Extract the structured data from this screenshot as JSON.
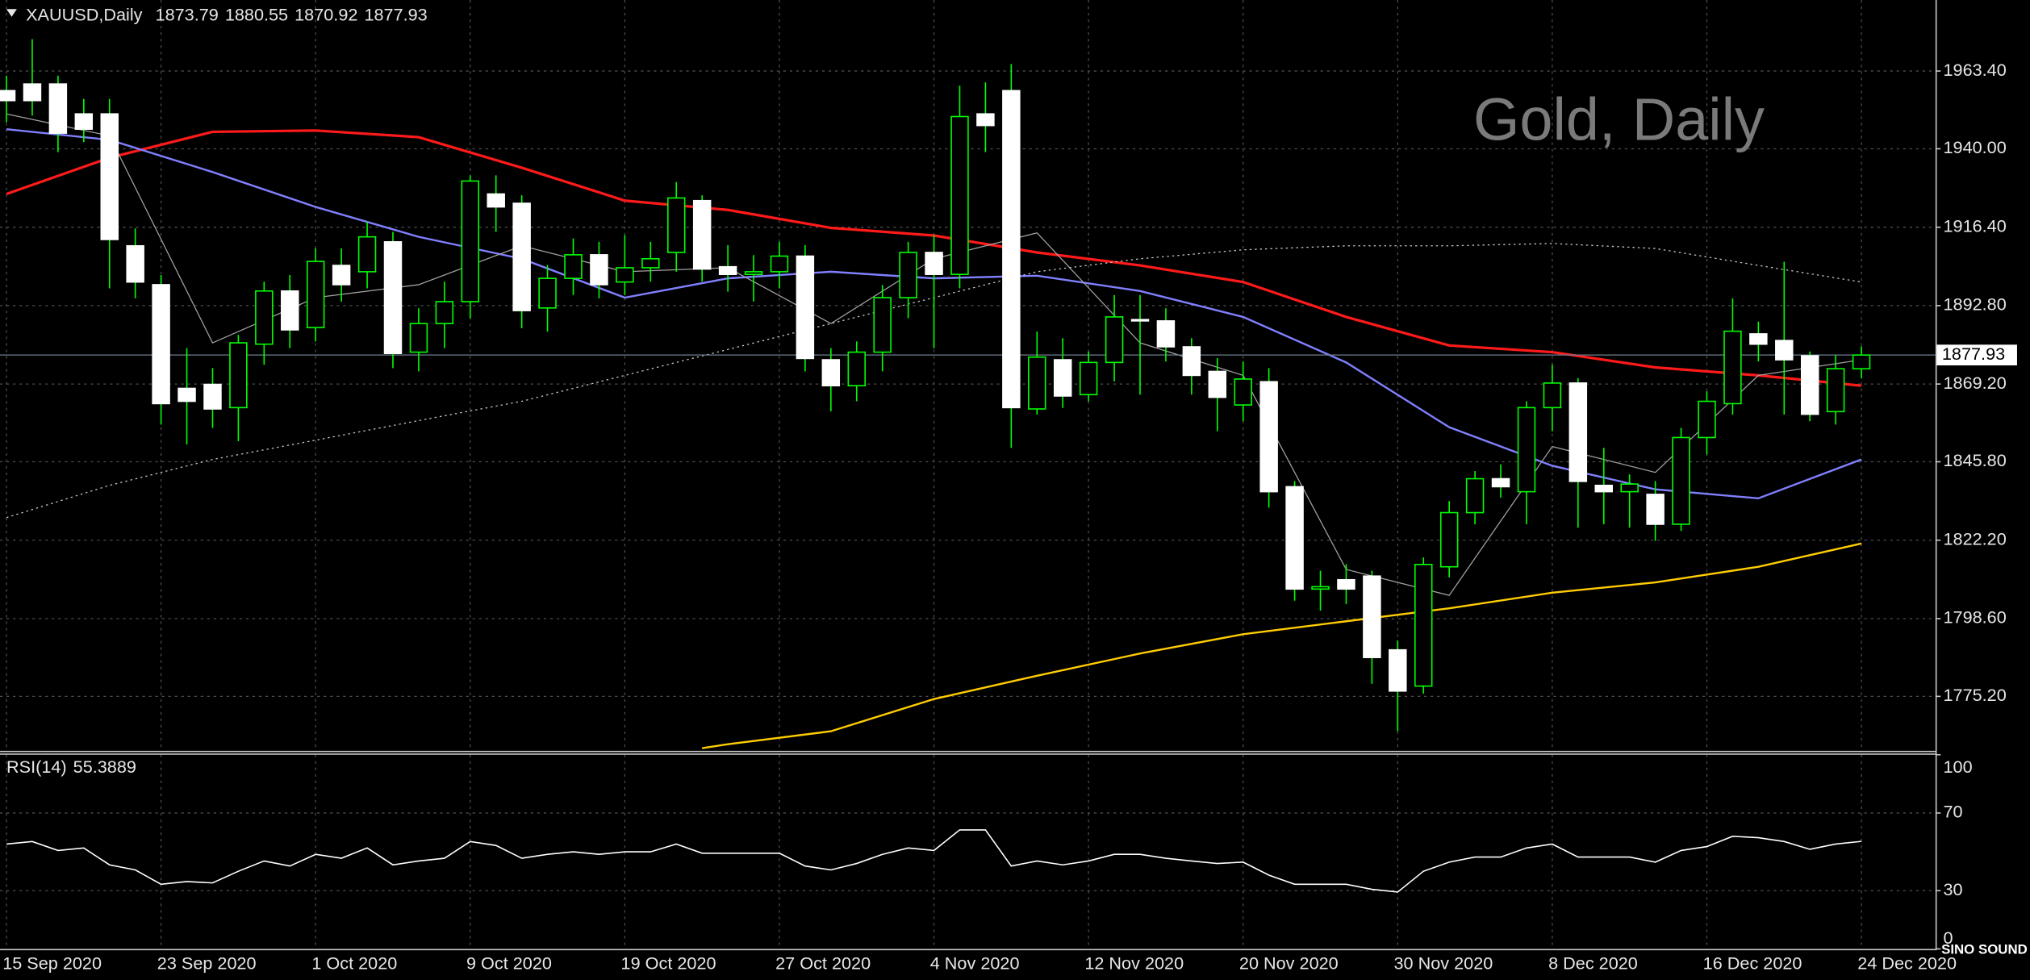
{
  "chart_data": [
    {
      "type": "candlestick",
      "title": "XAUUSD,Daily",
      "watermark": "Gold, Daily",
      "logo": "SINO SOUND",
      "categories": [
        "15 Sep 2020",
        null,
        null,
        null,
        null,
        null,
        "23 Sep 2020",
        null,
        null,
        null,
        null,
        null,
        "1 Oct 2020",
        null,
        null,
        null,
        null,
        null,
        "9 Oct 2020",
        null,
        null,
        null,
        null,
        null,
        "19 Oct 2020",
        null,
        null,
        null,
        null,
        null,
        "27 Oct 2020",
        null,
        null,
        null,
        null,
        null,
        "4 Nov 2020",
        null,
        null,
        null,
        null,
        null,
        "12 Nov 2020",
        null,
        null,
        null,
        null,
        null,
        "20 Nov 2020",
        null,
        null,
        null,
        null,
        null,
        "30 Nov 2020",
        null,
        null,
        null,
        null,
        null,
        "8 Dec 2020",
        null,
        null,
        null,
        null,
        null,
        "16 Dec 2020",
        null,
        null,
        null,
        null,
        null,
        "24 Dec 2020"
      ],
      "open": [
        1957.5,
        1959.5,
        1959.5,
        1950.5,
        1950.5,
        1910.8,
        1899.1,
        1867.9,
        1869.1,
        1862.1,
        1881.2,
        1897.2,
        1886.2,
        1904.9,
        1903.0,
        1912.0,
        1878.8,
        1887.4,
        1894.0,
        1926.4,
        1923.6,
        1892.1,
        1901.0,
        1908.1,
        1899.9,
        1904.2,
        1908.8,
        1924.4,
        1904.5,
        1902.2,
        1903.0,
        1907.7,
        1876.5,
        1868.7,
        1878.8,
        1895.2,
        1908.8,
        1902.2,
        1950.5,
        1957.5,
        1861.7,
        1876.5,
        1866.0,
        1875.7,
        1888.6,
        1888.2,
        1880.4,
        1873.0,
        1862.9,
        1869.9,
        1838.3,
        1807.5,
        1810.3,
        1811.4,
        1789.2,
        1778.3,
        1814.2,
        1830.5,
        1840.7,
        1836.8,
        1862.1,
        1869.5,
        1838.7,
        1836.8,
        1836.0,
        1827.0,
        1853.1,
        1863.3,
        1884.3,
        1882.3,
        1877.7,
        1860.9,
        1873.79
      ],
      "high": [
        1962,
        1973,
        1962,
        1955,
        1955,
        1916,
        1902,
        1880,
        1874,
        1884,
        1900,
        1902,
        1910,
        1910,
        1918,
        1915,
        1892,
        1900,
        1932,
        1932,
        1926,
        1905,
        1913,
        1912,
        1914,
        1912,
        1930,
        1926,
        1911,
        1908,
        1912,
        1911,
        1880,
        1882,
        1899,
        1912,
        1914,
        1959,
        1960,
        1965.5,
        1885,
        1883,
        1879,
        1896,
        1896,
        1892,
        1883,
        1877,
        1876,
        1874,
        1840,
        1813,
        1815,
        1813,
        1792,
        1817,
        1834,
        1843,
        1845,
        1864,
        1875,
        1871,
        1850,
        1842,
        1840,
        1856,
        1867,
        1895,
        1888,
        1906,
        1879,
        1878,
        1880.55
      ],
      "low": [
        1948,
        1950,
        1939,
        1942,
        1898,
        1895,
        1857,
        1851,
        1856,
        1852,
        1875,
        1880,
        1882,
        1894,
        1898,
        1874,
        1873,
        1880,
        1889,
        1915,
        1886,
        1885,
        1896,
        1895,
        1896,
        1900,
        1903,
        1900,
        1897,
        1894,
        1898,
        1873,
        1861,
        1864,
        1873,
        1889,
        1880,
        1898,
        1939,
        1850,
        1860,
        1862,
        1864,
        1870,
        1866,
        1876,
        1866,
        1855,
        1858,
        1832,
        1804,
        1801,
        1803,
        1779,
        1764.7,
        1776,
        1811,
        1827,
        1835,
        1827,
        1855,
        1826,
        1827,
        1826,
        1822,
        1825,
        1848,
        1860,
        1876,
        1860,
        1858,
        1857,
        1870.92
      ],
      "close": [
        1954.5,
        1954.5,
        1944.7,
        1945.9,
        1912.7,
        1899.9,
        1863.3,
        1864.0,
        1861.7,
        1881.6,
        1897.2,
        1885.5,
        1906.1,
        1899.1,
        1913.5,
        1878.4,
        1887.4,
        1894.0,
        1930.3,
        1922.5,
        1891.3,
        1901.0,
        1908.1,
        1899.1,
        1904.2,
        1906.9,
        1925.2,
        1903.8,
        1902.2,
        1903.0,
        1907.7,
        1876.9,
        1868.7,
        1878.8,
        1895.2,
        1908.8,
        1902.2,
        1949.7,
        1947.0,
        1862.1,
        1877.3,
        1865.6,
        1875.7,
        1889.4,
        1888.2,
        1880.4,
        1871.8,
        1865.2,
        1870.7,
        1836.8,
        1807.5,
        1808.2,
        1807.5,
        1786.9,
        1776.8,
        1814.9,
        1830.5,
        1840.7,
        1838.3,
        1862.1,
        1869.5,
        1839.9,
        1836.8,
        1839.1,
        1827.0,
        1853.1,
        1864.0,
        1885.1,
        1881.2,
        1876.5,
        1860.1,
        1873.8,
        1877.93
      ],
      "bull_color": "#00ff00",
      "bear_color": "#ffffff",
      "ylim": [
        1758.8,
        1984.0
      ],
      "yticks": [
        {
          "value": 1963.4,
          "label": "1963.40"
        },
        {
          "value": 1940,
          "label": "1940.00"
        },
        {
          "value": 1916.4,
          "label": "1916.40"
        },
        {
          "value": 1892.8,
          "label": "1892.80"
        },
        {
          "value": 1869.2,
          "label": "1869.20"
        },
        {
          "value": 1845.8,
          "label": "1845.80"
        },
        {
          "value": 1822.2,
          "label": "1822.20"
        },
        {
          "value": 1798.6,
          "label": "1798.60"
        },
        {
          "value": 1775.2,
          "label": "1775.20"
        }
      ],
      "grid": true,
      "lines": [
        {
          "color": "#ff1a1a",
          "width": 2,
          "dash": false,
          "x": [
            0,
            4,
            8,
            12,
            16,
            20,
            24,
            28,
            32,
            36,
            40,
            44,
            48,
            52,
            56,
            60,
            64,
            68,
            72
          ],
          "values": [
            1926.4,
            1937.3,
            1945.1,
            1945.5,
            1943.5,
            1934.3,
            1924.4,
            1921.6,
            1916.2,
            1913.9,
            1908.8,
            1904.9,
            1899.9,
            1889.4,
            1880.8,
            1878.8,
            1874.2,
            1871.8,
            1868.7
          ]
        },
        {
          "color": "#8080ff",
          "width": 1.5,
          "dash": false,
          "x": [
            0,
            4,
            8,
            12,
            16,
            20,
            24,
            28,
            32,
            36,
            40,
            44,
            48,
            52,
            56,
            60,
            64,
            68,
            72
          ],
          "values": [
            1945.9,
            1942.7,
            1933.0,
            1922.5,
            1913.5,
            1906.9,
            1895.2,
            1901.0,
            1903.0,
            1901.0,
            1901.8,
            1897.2,
            1889.4,
            1875.7,
            1856.2,
            1844.6,
            1837.5,
            1834.8,
            1846.5
          ]
        },
        {
          "color": "#a0a0a0",
          "width": 0.8,
          "dash": false,
          "x": [
            0,
            4,
            8,
            12,
            16,
            20,
            24,
            28,
            32,
            36,
            40,
            44,
            48,
            52,
            56,
            60,
            64,
            68,
            72
          ],
          "values": [
            1950.5,
            1943.9,
            1881.6,
            1895.2,
            1899.1,
            1910.8,
            1903.0,
            1904.2,
            1887.4,
            1906.9,
            1914.7,
            1881.6,
            1871.8,
            1813.4,
            1805.6,
            1850.4,
            1842.6,
            1871.8,
            1876.5
          ]
        },
        {
          "color": "#c8c8c8",
          "width": 0.8,
          "dash": true,
          "x": [
            0,
            4,
            8,
            12,
            16,
            20,
            24,
            28,
            32,
            36,
            40,
            44,
            48,
            52,
            56,
            60,
            64,
            68,
            72
          ],
          "values": [
            1829.0,
            1838.7,
            1846.5,
            1852.3,
            1858.2,
            1864.0,
            1871.8,
            1879.6,
            1887.4,
            1895.2,
            1903.0,
            1906.9,
            1909.6,
            1910.8,
            1910.8,
            1911.5,
            1910.0,
            1904.9,
            1899.9
          ]
        },
        {
          "color": "#ffcc00",
          "width": 1.5,
          "dash": false,
          "x": [
            27,
            28,
            32,
            36,
            40,
            44,
            48,
            52,
            56,
            60,
            64,
            68,
            72
          ],
          "values": [
            1759.6,
            1760.8,
            1764.7,
            1774.4,
            1781.4,
            1788.1,
            1793.9,
            1797.8,
            1801.7,
            1806.4,
            1809.5,
            1814.2,
            1821.2
          ]
        }
      ]
    },
    {
      "type": "line",
      "title": "RSI(14)",
      "values": [
        54.0,
        55.3,
        50.7,
        52.0,
        43.3,
        40.7,
        33.3,
        34.7,
        34.0,
        40.0,
        45.3,
        42.7,
        48.7,
        46.7,
        52.0,
        43.3,
        45.3,
        46.7,
        55.3,
        53.3,
        46.7,
        48.7,
        50.0,
        48.7,
        50.0,
        50.0,
        54.0,
        49.3,
        49.3,
        49.3,
        49.3,
        42.7,
        40.7,
        44.0,
        48.7,
        52.0,
        50.7,
        61.3,
        61.3,
        42.7,
        45.3,
        43.3,
        45.3,
        48.7,
        48.7,
        46.7,
        45.3,
        44.0,
        44.7,
        38.0,
        33.3,
        33.3,
        33.3,
        30.7,
        29.3,
        40.0,
        44.7,
        47.3,
        47.3,
        52.0,
        54.0,
        47.3,
        47.3,
        47.3,
        44.7,
        50.7,
        52.7,
        58.0,
        57.3,
        55.3,
        51.3,
        54.0,
        55.3889
      ],
      "color": "#ffffff",
      "ylim": [
        0,
        100
      ],
      "yticks": [
        100,
        70,
        30,
        0
      ]
    }
  ]
}
